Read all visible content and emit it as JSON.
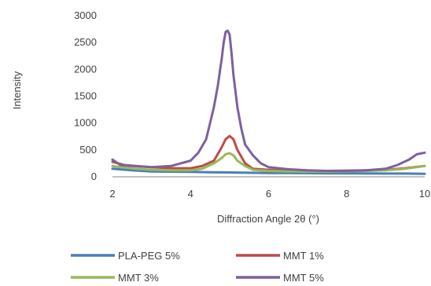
{
  "chart_data": {
    "type": "line",
    "title": "",
    "xlabel": "Diffraction Angle 2θ (°)",
    "ylabel": "Intensity",
    "xlim": [
      2,
      10
    ],
    "ylim": [
      0,
      3000
    ],
    "xticks": [
      2,
      4,
      6,
      8,
      10
    ],
    "yticks": [
      0,
      500,
      1000,
      1500,
      2000,
      2500,
      3000
    ],
    "grid": false,
    "legend_position": "bottom",
    "series": [
      {
        "name": "PLA-PEG 5%",
        "color": "#4a7ebb",
        "x": [
          2.0,
          2.5,
          3.0,
          3.5,
          4.0,
          4.5,
          5.0,
          5.5,
          6.0,
          6.5,
          7.0,
          7.5,
          8.0,
          8.5,
          9.0,
          9.5,
          10.0
        ],
        "y": [
          150,
          120,
          100,
          95,
          90,
          85,
          80,
          75,
          70,
          70,
          68,
          65,
          65,
          62,
          60,
          60,
          55
        ]
      },
      {
        "name": "MMT 1%",
        "color": "#be4b48",
        "x": [
          2.0,
          2.3,
          2.6,
          3.0,
          3.5,
          4.0,
          4.3,
          4.6,
          4.8,
          4.9,
          5.0,
          5.1,
          5.2,
          5.4,
          5.6,
          6.0,
          6.5,
          7.0,
          7.5,
          8.0,
          8.5,
          9.0,
          9.5,
          10.0
        ],
        "y": [
          280,
          220,
          200,
          180,
          160,
          160,
          200,
          300,
          550,
          700,
          760,
          700,
          500,
          250,
          150,
          130,
          110,
          110,
          110,
          115,
          120,
          130,
          160,
          200
        ]
      },
      {
        "name": "MMT 3%",
        "color": "#98b954",
        "x": [
          2.0,
          2.3,
          2.6,
          3.0,
          3.5,
          4.0,
          4.3,
          4.6,
          4.8,
          4.9,
          5.0,
          5.1,
          5.2,
          5.4,
          5.6,
          6.0,
          6.5,
          7.0,
          7.5,
          8.0,
          8.5,
          9.0,
          9.5,
          10.0
        ],
        "y": [
          200,
          170,
          150,
          130,
          120,
          120,
          150,
          250,
          350,
          420,
          440,
          400,
          300,
          200,
          130,
          110,
          100,
          95,
          95,
          100,
          110,
          120,
          150,
          200
        ]
      },
      {
        "name": "MMT 5%",
        "color": "#7d60a0",
        "x": [
          2.0,
          2.2,
          2.5,
          3.0,
          3.5,
          4.0,
          4.2,
          4.4,
          4.5,
          4.6,
          4.7,
          4.8,
          4.85,
          4.9,
          4.95,
          5.0,
          5.05,
          5.1,
          5.2,
          5.3,
          5.4,
          5.6,
          5.8,
          6.0,
          6.5,
          7.0,
          7.5,
          8.0,
          8.5,
          9.0,
          9.3,
          9.6,
          9.8,
          10.0
        ],
        "y": [
          320,
          220,
          200,
          180,
          200,
          300,
          450,
          700,
          1000,
          1300,
          1700,
          2200,
          2500,
          2700,
          2720,
          2650,
          2300,
          1900,
          1300,
          900,
          600,
          400,
          250,
          180,
          140,
          120,
          110,
          110,
          120,
          150,
          220,
          320,
          420,
          450
        ]
      }
    ]
  }
}
